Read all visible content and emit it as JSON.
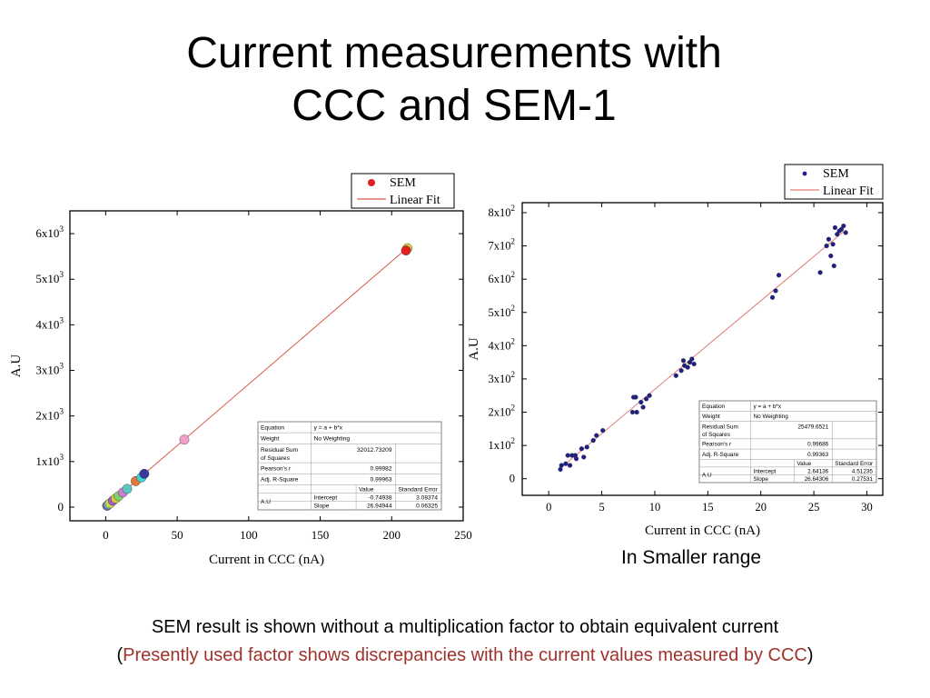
{
  "slide": {
    "title_line1": "Current measurements with",
    "title_line2": "CCC and SEM-1",
    "range_caption": "In Smaller range",
    "footnote_line1": "SEM result is shown without a multiplication factor to obtain equivalent current",
    "footnote_open": "(",
    "footnote_red": "Presently used factor shows discrepancies with the current values measured by CCC",
    "footnote_close": ")",
    "footnote_red_color": "#a0322c"
  },
  "chart_data": [
    {
      "type": "scatter",
      "xlabel": "Current in CCC (nA)",
      "ylabel": "A.U",
      "xlim": [
        -25,
        250
      ],
      "ylim": [
        -300,
        6500
      ],
      "x_ticks": [
        0,
        50,
        100,
        150,
        200,
        250
      ],
      "y_ticks": [
        {
          "value": 0,
          "base": "0",
          "exp": ""
        },
        {
          "value": 1000,
          "base": "1x10",
          "exp": "3"
        },
        {
          "value": 2000,
          "base": "2x10",
          "exp": "3"
        },
        {
          "value": 3000,
          "base": "3x10",
          "exp": "3"
        },
        {
          "value": 4000,
          "base": "4x10",
          "exp": "3"
        },
        {
          "value": 5000,
          "base": "5x10",
          "exp": "3"
        },
        {
          "value": 6000,
          "base": "6x10",
          "exp": "3"
        }
      ],
      "legend": {
        "position": "top-right",
        "entries": [
          "SEM",
          "Linear Fit"
        ]
      },
      "series": [
        {
          "name": "SEM",
          "color": "#e02020",
          "points": [
            {
              "x": 1,
              "y": 30,
              "c": "#6b6b9e"
            },
            {
              "x": 2,
              "y": 60,
              "c": "#7fb8d8"
            },
            {
              "x": 3,
              "y": 80,
              "c": "#c9d94f"
            },
            {
              "x": 5,
              "y": 140,
              "c": "#9a5fcf"
            },
            {
              "x": 7,
              "y": 190,
              "c": "#e8c23a"
            },
            {
              "x": 9,
              "y": 240,
              "c": "#7bd36b"
            },
            {
              "x": 12,
              "y": 320,
              "c": "#d07cd0"
            },
            {
              "x": 15,
              "y": 400,
              "c": "#5ec6c6"
            },
            {
              "x": 21,
              "y": 570,
              "c": "#e07a3a"
            },
            {
              "x": 25,
              "y": 650,
              "c": "#42d4d4"
            },
            {
              "x": 27,
              "y": 730,
              "c": "#3a3a9e"
            },
            {
              "x": 55,
              "y": 1480,
              "c": "#f0a0c8"
            },
            {
              "x": 211,
              "y": 5680,
              "c": "#d8d040"
            },
            {
              "x": 210,
              "y": 5630,
              "c": "#e02020"
            }
          ]
        },
        {
          "name": "Linear Fit",
          "color": "#d85a4a",
          "line": [
            [
              -0.03,
              0
            ],
            [
              211,
              5690
            ]
          ]
        }
      ],
      "fit_table": {
        "rows": [
          [
            "Equation",
            "y = a + b*x"
          ],
          [
            "Weight",
            "No Weighting"
          ],
          [
            "Residual Sum of Squares",
            "32012.73209"
          ],
          [
            "Pearson's r",
            "0.99982"
          ],
          [
            "Adj. R-Square",
            "0.99963"
          ]
        ],
        "col_value": "Value",
        "col_error": "Standard Error",
        "param_label": "A.U",
        "params": [
          {
            "name": "Intercept",
            "value": "-0.74938",
            "error": "3.08374"
          },
          {
            "name": "Slope",
            "value": "26.94944",
            "error": "0.06325"
          }
        ]
      }
    },
    {
      "type": "scatter",
      "xlabel": "Current in CCC (nA)",
      "ylabel": "A.U",
      "xlim": [
        -2.5,
        31.5
      ],
      "ylim": [
        -50,
        830
      ],
      "x_ticks": [
        0,
        5,
        10,
        15,
        20,
        25,
        30
      ],
      "y_ticks": [
        {
          "value": 0,
          "base": "0",
          "exp": ""
        },
        {
          "value": 100,
          "base": "1x10",
          "exp": "2"
        },
        {
          "value": 200,
          "base": "2x10",
          "exp": "2"
        },
        {
          "value": 300,
          "base": "3x10",
          "exp": "2"
        },
        {
          "value": 400,
          "base": "4x10",
          "exp": "2"
        },
        {
          "value": 500,
          "base": "5x10",
          "exp": "2"
        },
        {
          "value": 600,
          "base": "6x10",
          "exp": "2"
        },
        {
          "value": 700,
          "base": "7x10",
          "exp": "2"
        },
        {
          "value": 800,
          "base": "8x10",
          "exp": "2"
        }
      ],
      "legend": {
        "position": "top-right",
        "entries": [
          "SEM",
          "Linear Fit"
        ]
      },
      "series": [
        {
          "name": "SEM",
          "color": "#1f1f8a",
          "points": [
            [
              1.1,
              28
            ],
            [
              1.2,
              40
            ],
            [
              1.6,
              45
            ],
            [
              1.8,
              70
            ],
            [
              2.0,
              40
            ],
            [
              2.2,
              70
            ],
            [
              2.5,
              70
            ],
            [
              2.6,
              60
            ],
            [
              3.1,
              90
            ],
            [
              3.3,
              65
            ],
            [
              3.6,
              95
            ],
            [
              4.2,
              115
            ],
            [
              4.5,
              130
            ],
            [
              5.1,
              145
            ],
            [
              7.9,
              200
            ],
            [
              8.0,
              245
            ],
            [
              8.2,
              245
            ],
            [
              8.3,
              200
            ],
            [
              8.7,
              230
            ],
            [
              8.9,
              215
            ],
            [
              9.2,
              240
            ],
            [
              9.5,
              250
            ],
            [
              12.0,
              310
            ],
            [
              12.5,
              325
            ],
            [
              12.7,
              355
            ],
            [
              12.8,
              340
            ],
            [
              13.1,
              335
            ],
            [
              13.3,
              350
            ],
            [
              13.5,
              360
            ],
            [
              13.7,
              345
            ],
            [
              21.1,
              545
            ],
            [
              21.4,
              565
            ],
            [
              21.7,
              612
            ],
            [
              25.6,
              620
            ],
            [
              26.2,
              700
            ],
            [
              26.4,
              720
            ],
            [
              26.6,
              670
            ],
            [
              26.8,
              705
            ],
            [
              26.9,
              640
            ],
            [
              27.0,
              755
            ],
            [
              27.2,
              735
            ],
            [
              27.4,
              745
            ],
            [
              27.6,
              750
            ],
            [
              27.8,
              760
            ],
            [
              28.0,
              740
            ]
          ]
        },
        {
          "name": "Linear Fit",
          "color": "#e07a7a",
          "line": [
            [
              0.9,
              26.4
            ],
            [
              27.8,
              742.8
            ]
          ]
        }
      ],
      "fit_table": {
        "rows": [
          [
            "Equation",
            "y = a + b*x"
          ],
          [
            "Weight",
            "No Weighting"
          ],
          [
            "Residual Sum of Squares",
            "25479.6521"
          ],
          [
            "Pearson's r",
            "0.99686"
          ],
          [
            "Adj. R-Square",
            "0.99363"
          ]
        ],
        "col_value": "Value",
        "col_error": "Standard Error",
        "param_label": "A.U",
        "params": [
          {
            "name": "Intercept",
            "value": "2.64136",
            "error": "4.51235"
          },
          {
            "name": "Slope",
            "value": "26.64306",
            "error": "0.27531"
          }
        ]
      }
    }
  ]
}
